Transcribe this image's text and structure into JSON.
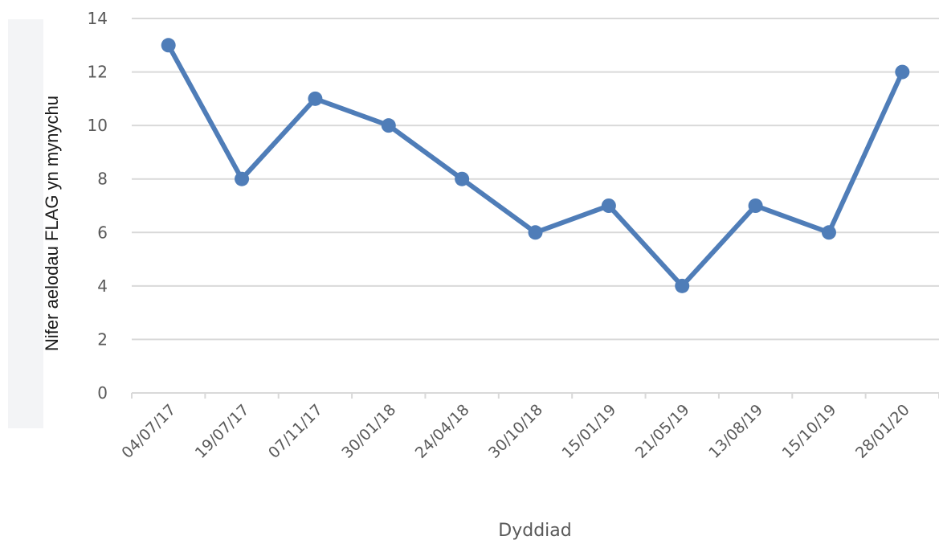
{
  "chart_data": {
    "type": "line",
    "title": "",
    "xlabel": "Dyddiad",
    "ylabel": "Nifer aelodau FLAG yn mynychu",
    "categories": [
      "04/07/17",
      "19/07/17",
      "07/11/17",
      "30/01/18",
      "24/04/18",
      "30/10/18",
      "15/01/19",
      "21/05/19",
      "13/08/19",
      "15/10/19",
      "28/01/20"
    ],
    "series": [
      {
        "values": [
          13,
          8,
          11,
          10,
          8,
          6,
          7,
          4,
          7,
          6,
          12
        ]
      }
    ],
    "ylim": [
      0,
      14
    ],
    "yticks": [
      0,
      2,
      4,
      6,
      8,
      10,
      12,
      14
    ],
    "grid": true,
    "legend": "none",
    "colors": {
      "series": "#4f7db8",
      "grid": "#d9d9d9",
      "tick_text": "#595959"
    }
  }
}
